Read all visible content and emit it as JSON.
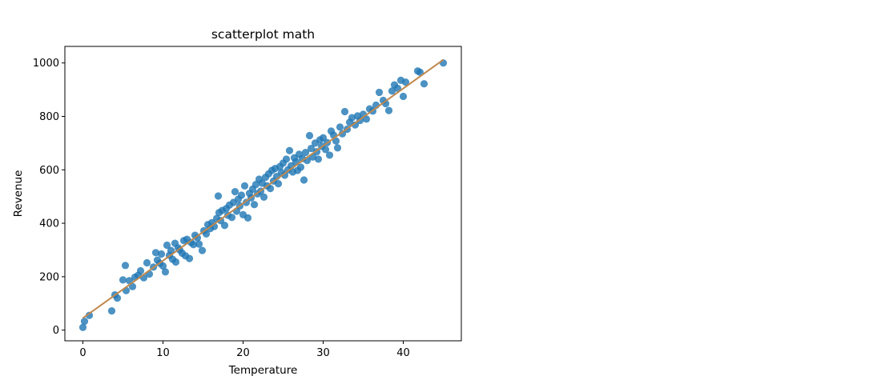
{
  "chart_data": {
    "type": "scatter",
    "title": "scatterplot math",
    "xlabel": "Temperature",
    "ylabel": "Revenue",
    "xlim": [
      -2.25,
      47.25
    ],
    "ylim": [
      -40,
      1062
    ],
    "xticks": [
      0,
      10,
      20,
      30,
      40
    ],
    "yticks": [
      0,
      200,
      400,
      600,
      800,
      1000
    ],
    "grid": false,
    "legend": "none",
    "colors": {
      "points": "#1f77b4",
      "regression_line": "#c0884e"
    },
    "regression_line": {
      "x": [
        0,
        45
      ],
      "y": [
        45,
        1012
      ]
    },
    "points": [
      {
        "x": 0.0,
        "y": 10
      },
      {
        "x": 0.2,
        "y": 33
      },
      {
        "x": 0.8,
        "y": 55
      },
      {
        "x": 3.6,
        "y": 72
      },
      {
        "x": 4.0,
        "y": 132
      },
      {
        "x": 4.3,
        "y": 120
      },
      {
        "x": 5.0,
        "y": 188
      },
      {
        "x": 5.3,
        "y": 242
      },
      {
        "x": 5.4,
        "y": 148
      },
      {
        "x": 5.8,
        "y": 185
      },
      {
        "x": 6.2,
        "y": 163
      },
      {
        "x": 6.5,
        "y": 198
      },
      {
        "x": 6.9,
        "y": 205
      },
      {
        "x": 7.2,
        "y": 222
      },
      {
        "x": 7.6,
        "y": 196
      },
      {
        "x": 8.0,
        "y": 252
      },
      {
        "x": 8.3,
        "y": 210
      },
      {
        "x": 8.8,
        "y": 236
      },
      {
        "x": 9.1,
        "y": 290
      },
      {
        "x": 9.3,
        "y": 262
      },
      {
        "x": 9.6,
        "y": 250
      },
      {
        "x": 9.8,
        "y": 285
      },
      {
        "x": 10.0,
        "y": 240
      },
      {
        "x": 10.3,
        "y": 218
      },
      {
        "x": 10.5,
        "y": 318
      },
      {
        "x": 10.8,
        "y": 280
      },
      {
        "x": 11.0,
        "y": 298
      },
      {
        "x": 11.2,
        "y": 265
      },
      {
        "x": 11.5,
        "y": 325
      },
      {
        "x": 11.6,
        "y": 255
      },
      {
        "x": 11.9,
        "y": 308
      },
      {
        "x": 12.1,
        "y": 300
      },
      {
        "x": 12.4,
        "y": 288
      },
      {
        "x": 12.6,
        "y": 335
      },
      {
        "x": 12.8,
        "y": 278
      },
      {
        "x": 13.0,
        "y": 340
      },
      {
        "x": 13.3,
        "y": 268
      },
      {
        "x": 13.5,
        "y": 328
      },
      {
        "x": 13.8,
        "y": 320
      },
      {
        "x": 14.0,
        "y": 355
      },
      {
        "x": 14.3,
        "y": 345
      },
      {
        "x": 14.5,
        "y": 322
      },
      {
        "x": 14.9,
        "y": 298
      },
      {
        "x": 15.1,
        "y": 372
      },
      {
        "x": 15.4,
        "y": 360
      },
      {
        "x": 15.6,
        "y": 395
      },
      {
        "x": 15.9,
        "y": 380
      },
      {
        "x": 16.1,
        "y": 402
      },
      {
        "x": 16.4,
        "y": 388
      },
      {
        "x": 16.7,
        "y": 418
      },
      {
        "x": 16.9,
        "y": 502
      },
      {
        "x": 17.0,
        "y": 440
      },
      {
        "x": 17.2,
        "y": 410
      },
      {
        "x": 17.4,
        "y": 448
      },
      {
        "x": 17.7,
        "y": 392
      },
      {
        "x": 17.9,
        "y": 455
      },
      {
        "x": 18.1,
        "y": 430
      },
      {
        "x": 18.3,
        "y": 468
      },
      {
        "x": 18.6,
        "y": 422
      },
      {
        "x": 18.8,
        "y": 478
      },
      {
        "x": 19.0,
        "y": 518
      },
      {
        "x": 19.2,
        "y": 445
      },
      {
        "x": 19.4,
        "y": 490
      },
      {
        "x": 19.6,
        "y": 465
      },
      {
        "x": 19.8,
        "y": 505
      },
      {
        "x": 20.0,
        "y": 432
      },
      {
        "x": 20.2,
        "y": 540
      },
      {
        "x": 20.4,
        "y": 478
      },
      {
        "x": 20.6,
        "y": 420
      },
      {
        "x": 20.8,
        "y": 512
      },
      {
        "x": 21.0,
        "y": 495
      },
      {
        "x": 21.2,
        "y": 528
      },
      {
        "x": 21.4,
        "y": 470
      },
      {
        "x": 21.6,
        "y": 545
      },
      {
        "x": 21.8,
        "y": 510
      },
      {
        "x": 22.0,
        "y": 565
      },
      {
        "x": 22.2,
        "y": 520
      },
      {
        "x": 22.4,
        "y": 550
      },
      {
        "x": 22.6,
        "y": 498
      },
      {
        "x": 22.8,
        "y": 572
      },
      {
        "x": 23.0,
        "y": 540
      },
      {
        "x": 23.2,
        "y": 585
      },
      {
        "x": 23.4,
        "y": 530
      },
      {
        "x": 23.6,
        "y": 598
      },
      {
        "x": 23.8,
        "y": 558
      },
      {
        "x": 24.0,
        "y": 605
      },
      {
        "x": 24.2,
        "y": 575
      },
      {
        "x": 24.4,
        "y": 548
      },
      {
        "x": 24.6,
        "y": 612
      },
      {
        "x": 24.8,
        "y": 590
      },
      {
        "x": 25.0,
        "y": 625
      },
      {
        "x": 25.2,
        "y": 580
      },
      {
        "x": 25.4,
        "y": 640
      },
      {
        "x": 25.6,
        "y": 600
      },
      {
        "x": 25.8,
        "y": 672
      },
      {
        "x": 26.0,
        "y": 615
      },
      {
        "x": 26.2,
        "y": 592
      },
      {
        "x": 26.4,
        "y": 645
      },
      {
        "x": 26.6,
        "y": 630
      },
      {
        "x": 26.8,
        "y": 598
      },
      {
        "x": 27.0,
        "y": 658
      },
      {
        "x": 27.2,
        "y": 610
      },
      {
        "x": 27.4,
        "y": 642
      },
      {
        "x": 27.6,
        "y": 562
      },
      {
        "x": 27.8,
        "y": 665
      },
      {
        "x": 28.0,
        "y": 635
      },
      {
        "x": 28.3,
        "y": 728
      },
      {
        "x": 28.5,
        "y": 680
      },
      {
        "x": 28.7,
        "y": 648
      },
      {
        "x": 29.0,
        "y": 700
      },
      {
        "x": 29.2,
        "y": 668
      },
      {
        "x": 29.4,
        "y": 640
      },
      {
        "x": 29.6,
        "y": 712
      },
      {
        "x": 29.8,
        "y": 688
      },
      {
        "x": 30.0,
        "y": 720
      },
      {
        "x": 30.3,
        "y": 676
      },
      {
        "x": 30.5,
        "y": 702
      },
      {
        "x": 30.8,
        "y": 655
      },
      {
        "x": 31.0,
        "y": 745
      },
      {
        "x": 31.3,
        "y": 730
      },
      {
        "x": 31.6,
        "y": 708
      },
      {
        "x": 31.8,
        "y": 682
      },
      {
        "x": 32.1,
        "y": 760
      },
      {
        "x": 32.4,
        "y": 735
      },
      {
        "x": 32.7,
        "y": 818
      },
      {
        "x": 33.0,
        "y": 752
      },
      {
        "x": 33.3,
        "y": 778
      },
      {
        "x": 33.6,
        "y": 795
      },
      {
        "x": 34.0,
        "y": 768
      },
      {
        "x": 34.3,
        "y": 802
      },
      {
        "x": 34.6,
        "y": 785
      },
      {
        "x": 35.0,
        "y": 808
      },
      {
        "x": 35.4,
        "y": 790
      },
      {
        "x": 35.8,
        "y": 828
      },
      {
        "x": 36.2,
        "y": 820
      },
      {
        "x": 36.6,
        "y": 842
      },
      {
        "x": 37.0,
        "y": 890
      },
      {
        "x": 37.5,
        "y": 860
      },
      {
        "x": 37.8,
        "y": 848
      },
      {
        "x": 38.2,
        "y": 822
      },
      {
        "x": 38.6,
        "y": 895
      },
      {
        "x": 38.9,
        "y": 918
      },
      {
        "x": 39.3,
        "y": 905
      },
      {
        "x": 39.7,
        "y": 935
      },
      {
        "x": 40.0,
        "y": 875
      },
      {
        "x": 40.3,
        "y": 928
      },
      {
        "x": 41.8,
        "y": 970
      },
      {
        "x": 42.1,
        "y": 965
      },
      {
        "x": 42.6,
        "y": 922
      },
      {
        "x": 45.0,
        "y": 1000
      }
    ]
  }
}
